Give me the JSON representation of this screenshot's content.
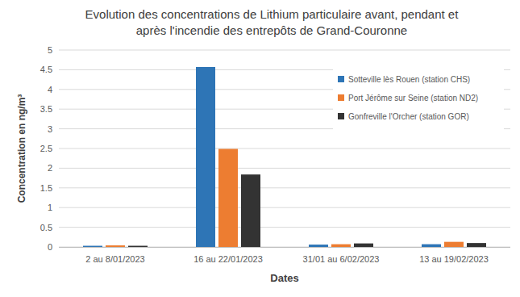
{
  "chart_data": {
    "type": "bar",
    "title": "Evolution des concentrations de Lithium particulaire avant, pendant et après l'incendie des entrepôts de Grand-Couronne",
    "x_label": "Dates",
    "y_label": "Concentration en ng/m³",
    "categories": [
      "2 au 8/01/2023",
      "16 au 22/01/2023",
      "31/01 au 6/02/2023",
      "13 au 19/02/2023"
    ],
    "series": [
      {
        "name": "Sotteville lès Rouen (station CHS)",
        "color": "#2e75b6",
        "values": [
          0.03,
          4.57,
          0.06,
          0.07
        ]
      },
      {
        "name": "Port Jérôme sur Seine (station ND2)",
        "color": "#ed7d31",
        "values": [
          0.04,
          2.49,
          0.07,
          0.13
        ]
      },
      {
        "name": "Gonfreville l'Orcher (station GOR)",
        "color": "#333333",
        "values": [
          0.03,
          1.84,
          0.09,
          0.1
        ]
      }
    ],
    "ylim": [
      0,
      5
    ],
    "yticks": [
      0,
      0.5,
      1,
      1.5,
      2,
      2.5,
      3,
      3.5,
      4,
      4.5,
      5
    ],
    "grid": true,
    "legend": "top-right"
  }
}
